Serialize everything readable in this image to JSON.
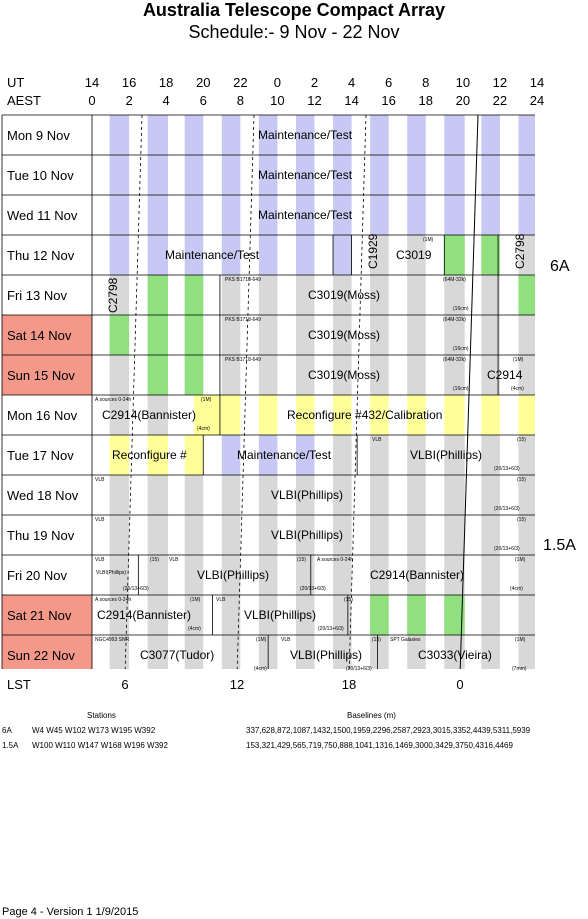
{
  "title": "Australia Telescope Compact Array",
  "subtitle": "Schedule:- 9  Nov - 22 Nov",
  "ut_label": "UT",
  "aest_label": "AEST",
  "ut_ticks": [
    "14",
    "16",
    "18",
    "20",
    "22",
    "0",
    "2",
    "4",
    "6",
    "8",
    "10",
    "12",
    "14"
  ],
  "aest_ticks": [
    "0",
    "2",
    "4",
    "6",
    "8",
    "10",
    "12",
    "14",
    "16",
    "18",
    "20",
    "22",
    "24"
  ],
  "lst_label": "LST",
  "lst_ticks": [
    "6",
    "12",
    "18",
    "0"
  ],
  "colors": {
    "maintenance": "#c8c8f5",
    "green": "#90e080",
    "grey": "#d8d8d8",
    "yellow": "#ffff99",
    "weekend": "#f4998a"
  },
  "days": [
    {
      "label": "Mon   9  Nov",
      "weekend": false
    },
    {
      "label": "Tue   10 Nov",
      "weekend": false
    },
    {
      "label": "Wed  11 Nov",
      "weekend": false
    },
    {
      "label": "Thu   12 Nov",
      "weekend": false
    },
    {
      "label": "Fri    13 Nov",
      "weekend": false
    },
    {
      "label": "Sat   14 Nov",
      "weekend": true
    },
    {
      "label": "Sun   15 Nov",
      "weekend": true
    },
    {
      "label": "Mon  16 Nov",
      "weekend": false
    },
    {
      "label": "Tue   17 Nov",
      "weekend": false
    },
    {
      "label": "Wed  18 Nov",
      "weekend": false
    },
    {
      "label": "Thu   19 Nov",
      "weekend": false
    },
    {
      "label": "Fri    20 Nov",
      "weekend": false
    },
    {
      "label": "Sat   21 Nov",
      "weekend": true
    },
    {
      "label": "Sun   22 Nov",
      "weekend": true
    }
  ],
  "config": {
    "first": "6A",
    "second": "1.5A"
  },
  "texts": {
    "maint": "Maintenance/Test",
    "c1929": "C1929",
    "c3019": "C3019",
    "c2798": "C2798",
    "c3019moss": "C3019(Moss)",
    "c2914": "C2914",
    "c2914b": "C2914(Bannister)",
    "reconf432": "Reconfigure #432/Calibration",
    "reconf": "Reconfigure #",
    "vlbi": "VLBI(Phillips)",
    "vlbi_short": "VLBI(Phillips)",
    "c3077": "C3077(Tudor)",
    "c3033": "C3033(Vieira)",
    "pks": "PKS B1718-649",
    "asrc": "A  sources 0-24h",
    "vlb": "VLB",
    "m1": "(1M)",
    "m64": "(64M-32k)",
    "cm16": "(16cm)",
    "cm4": "(4cm)",
    "b15": "(15)",
    "b20": "(20/13+6/3)",
    "ngc": "NGC4993 SNR",
    "spt": "SPT Galaxies",
    "mm7": "(7mm)"
  },
  "stations_header": "Stations",
  "baselines_header": "Baselines (m)",
  "arrays": [
    {
      "name": "6A",
      "stations": "W4  W45  W102  W173  W195  W392",
      "baselines": "337,628,872,1087,1432,1500,1959,2296,2587,2923,3015,3352,4439,5311,5939"
    },
    {
      "name": "1.5A",
      "stations": "W100  W110  W147  W168  W196  W392",
      "baselines": "153,321,429,565,719,750,888,1041,1316,1469,3000,3429,3750,4316,4469"
    }
  ],
  "footer": "Page 4 - Version 1  1/9/2015"
}
